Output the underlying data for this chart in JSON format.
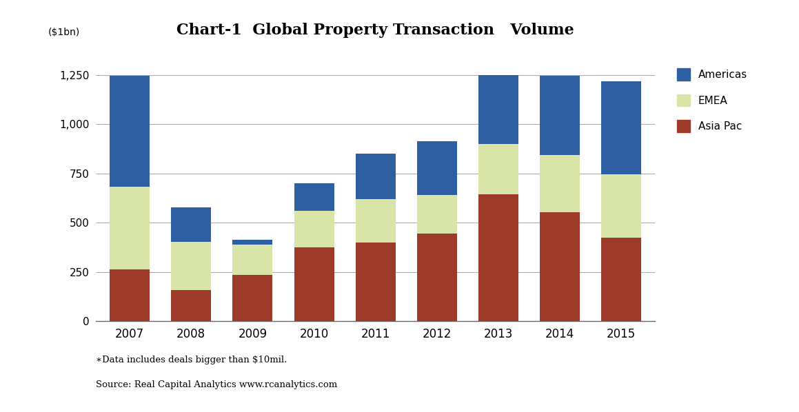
{
  "title": "Chart-1  Global Property Transaction   Volume",
  "ylabel": "($1bn)",
  "years": [
    2007,
    2008,
    2009,
    2010,
    2011,
    2012,
    2013,
    2014,
    2015
  ],
  "asia_pac": [
    265,
    160,
    235,
    375,
    400,
    445,
    645,
    555,
    425
  ],
  "emea": [
    420,
    245,
    155,
    185,
    220,
    195,
    255,
    290,
    320
  ],
  "americas": [
    560,
    175,
    25,
    140,
    230,
    275,
    350,
    400,
    475
  ],
  "color_asia": "#9e3a2a",
  "color_emea": "#d8e4a8",
  "color_americas": "#2e5fa3",
  "yticks": [
    0,
    250,
    500,
    750,
    1000,
    1250
  ],
  "ylim": [
    0,
    1380
  ],
  "footnote1": "∗Data includes deals bigger than $10mil.",
  "footnote2": "Source: Real Capital Analytics www.rcanalytics.com",
  "background_color": "#ffffff",
  "grid_color": "#999999"
}
